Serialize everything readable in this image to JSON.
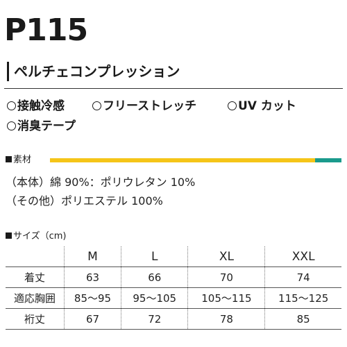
{
  "header": {
    "product_code": "P115",
    "product_name": "ペルチェコンプレッション"
  },
  "features": [
    "接触冷感",
    "フリーストレッチ",
    "UV カット",
    "消臭テープ"
  ],
  "material": {
    "heading": "素材",
    "lines": [
      "（本体）綿 90%：ポリウレタン 10%",
      "（その他）ポリエステル 100%"
    ],
    "accent_colors": {
      "yellow": "#f5c518",
      "teal": "#1a9a8c"
    }
  },
  "size": {
    "heading": "サイズ（cm)",
    "columns": [
      "",
      "M",
      "L",
      "XL",
      "XXL"
    ],
    "rows": [
      {
        "label": "着丈",
        "values": [
          "63",
          "66",
          "70",
          "74"
        ]
      },
      {
        "label": "適応胸囲",
        "values": [
          "85〜95",
          "95〜105",
          "105〜115",
          "115〜125"
        ]
      },
      {
        "label": "裄丈",
        "values": [
          "67",
          "72",
          "78",
          "85"
        ]
      }
    ]
  }
}
